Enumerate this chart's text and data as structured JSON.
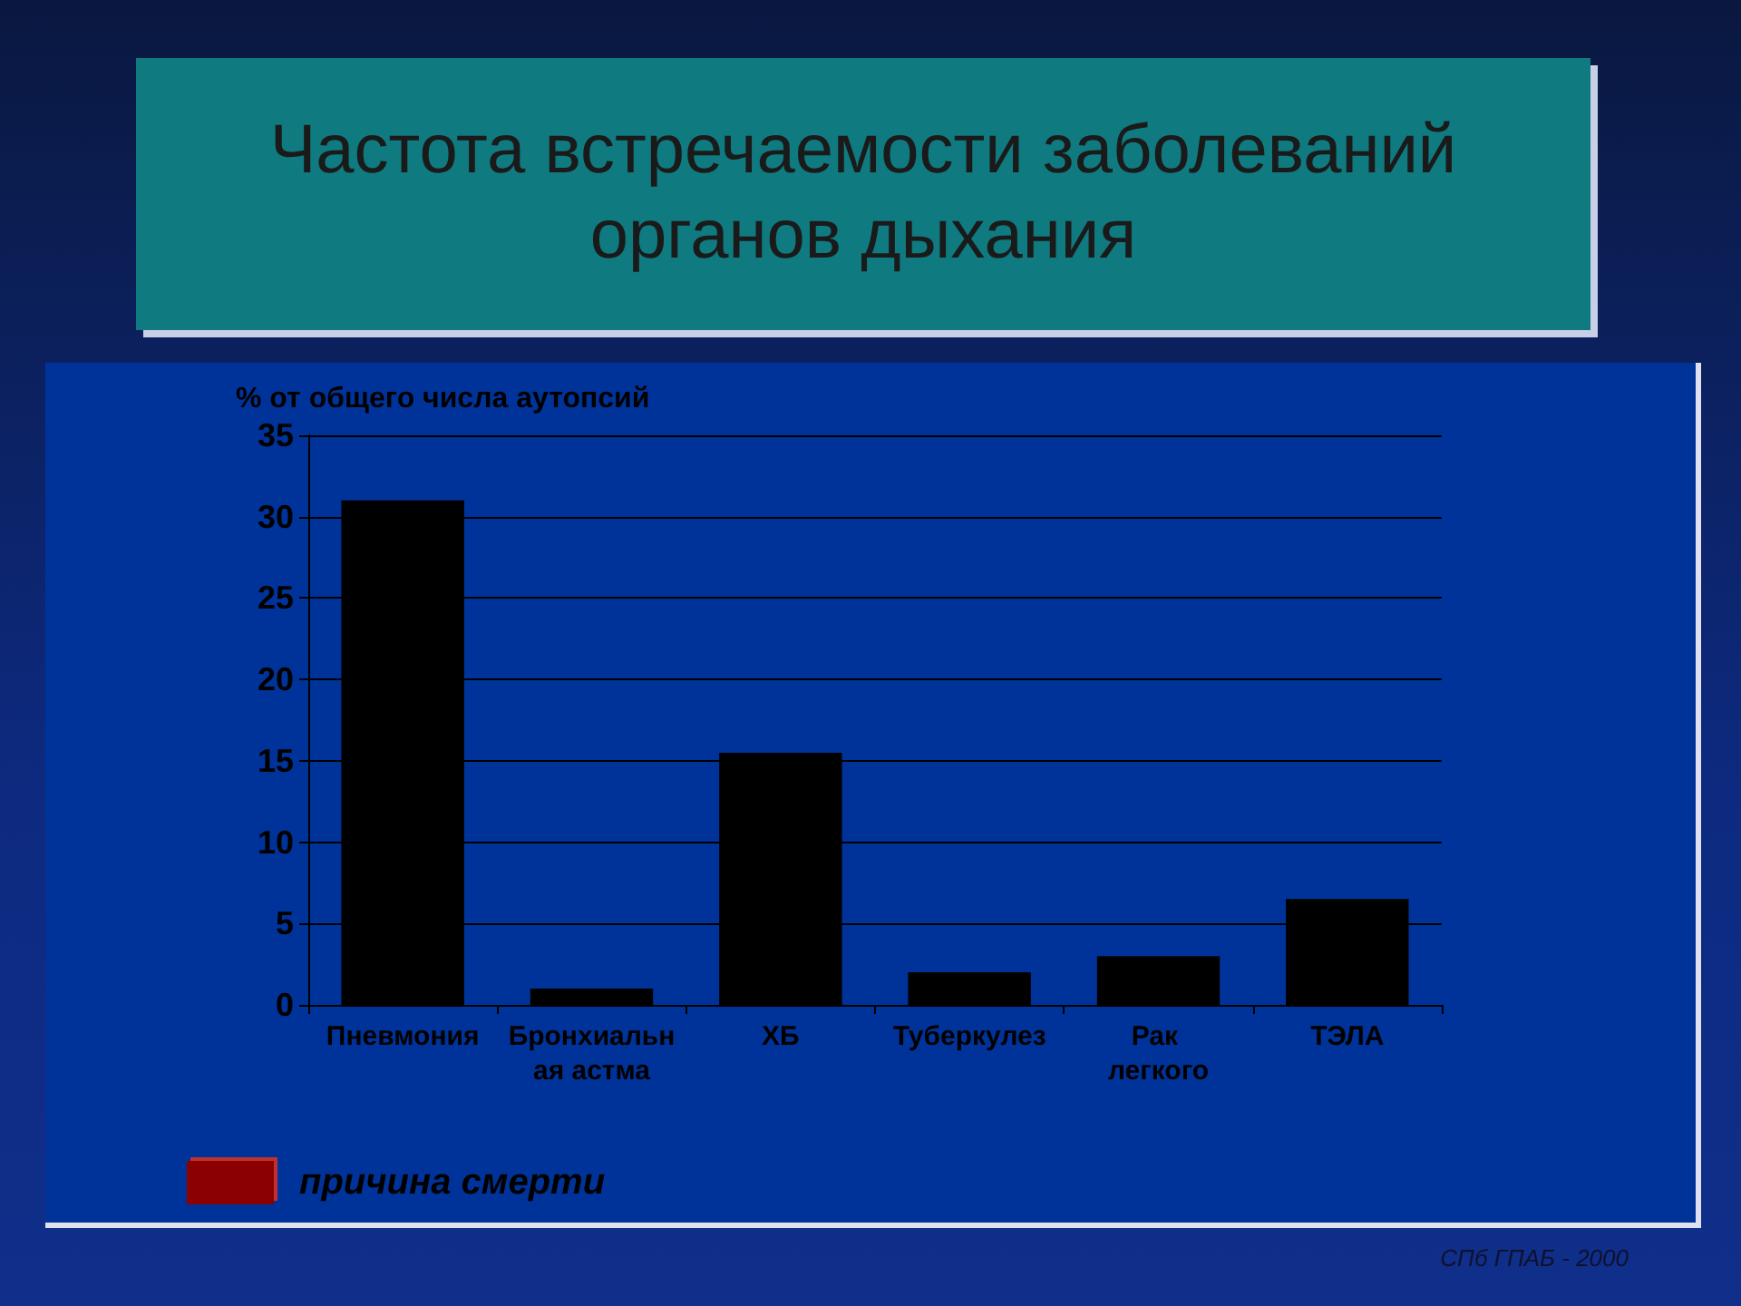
{
  "chart_data": {
    "type": "bar",
    "title": "Частота встречаемости заболеваний органов дыхания",
    "ylabel": "% от общего числа аутопсий",
    "categories": [
      "Пневмония",
      "Бронхиальная астма",
      "ХБ",
      "Туберкулез",
      "Рак легкого",
      "ТЭЛА"
    ],
    "series": [
      {
        "name": "причина смерти",
        "color": "#8b0000",
        "colors": [
          "#000000",
          "#000000",
          "#000000",
          "#000000",
          "#000000",
          "#000000"
        ],
        "values": [
          31,
          1,
          15.5,
          2,
          3,
          6.5
        ]
      }
    ],
    "ylim": [
      0,
      35
    ],
    "yticks": [
      0,
      5,
      10,
      15,
      20,
      25,
      30,
      35
    ],
    "grid": "y",
    "legend": "bottom left",
    "annotations": [
      "СПб ГПАБ - 2000"
    ]
  }
}
